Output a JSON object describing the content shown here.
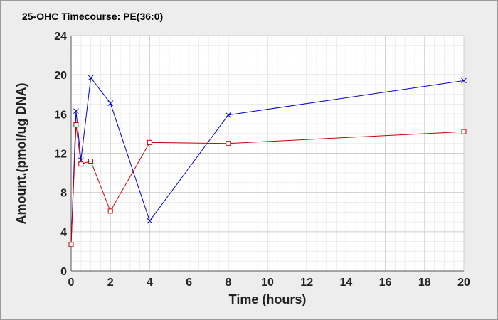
{
  "chart_data": {
    "type": "line",
    "title": "25-OHC Timecourse: PE(36:0)",
    "xlabel": "Time (hours)",
    "ylabel": "Amount.(pmol/ug DNA)",
    "xlim": [
      0,
      20
    ],
    "ylim": [
      0,
      24
    ],
    "xticks": [
      "0",
      "2",
      "4",
      "6",
      "8",
      "10",
      "12",
      "14",
      "16",
      "18",
      "20"
    ],
    "yticks": [
      "0",
      "4",
      "8",
      "12",
      "16",
      "20",
      "24"
    ],
    "grid": true,
    "legend": "none",
    "series": [
      {
        "marker": "x",
        "color": "#0000cc",
        "x": [
          0,
          0.25,
          0.5,
          1,
          2,
          4,
          8,
          20
        ],
        "y": [
          2.7,
          16.3,
          11.3,
          19.7,
          17.1,
          5.1,
          15.9,
          19.4
        ]
      },
      {
        "marker": "square",
        "color": "#cc0000",
        "x": [
          0,
          0.25,
          0.5,
          1,
          2,
          4,
          8,
          20
        ],
        "y": [
          2.7,
          14.9,
          10.9,
          11.2,
          6.1,
          13.1,
          13.0,
          14.2
        ]
      }
    ]
  }
}
